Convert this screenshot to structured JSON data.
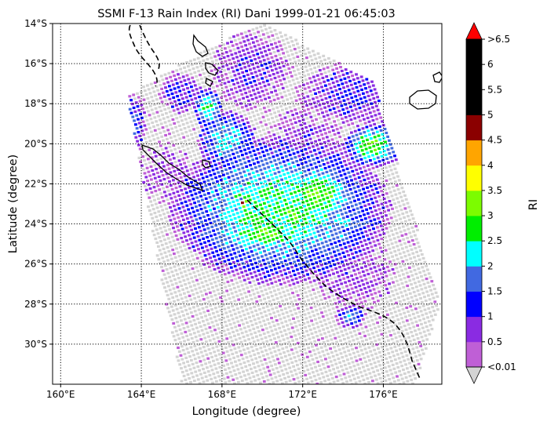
{
  "chart_data": {
    "type": "heatmap",
    "title": "SSMI F-13 Rain Index (RI) Dani 1999-01-21 06:45:03",
    "xlabel": "Longitude (degree)",
    "ylabel": "Latitude (degree)",
    "colorbar_label": "RI",
    "xlim": [
      159.6,
      178.9
    ],
    "ylim": [
      -32.0,
      -14.0
    ],
    "grid": true,
    "grid_style": "dotted",
    "x_ticks": [
      {
        "value": 160,
        "label": "160°E"
      },
      {
        "value": 164,
        "label": "164°E"
      },
      {
        "value": 168,
        "label": "168°E"
      },
      {
        "value": 172,
        "label": "172°E"
      },
      {
        "value": 176,
        "label": "176°E"
      }
    ],
    "y_ticks": [
      {
        "value": -14,
        "label": "14°S"
      },
      {
        "value": -16,
        "label": "16°S"
      },
      {
        "value": -18,
        "label": "18°S"
      },
      {
        "value": -20,
        "label": "20°S"
      },
      {
        "value": -22,
        "label": "22°S"
      },
      {
        "value": -24,
        "label": "24°S"
      },
      {
        "value": -26,
        "label": "26°S"
      },
      {
        "value": -28,
        "label": "28°S"
      },
      {
        "value": -30,
        "label": "30°S"
      }
    ],
    "colorbar": {
      "under_color": "#d3d3d3",
      "over_color": "#ff0000",
      "bins": [
        {
          "color": "#bf5fd6"
        },
        {
          "color": "#8a2be2"
        },
        {
          "color": "#0000ff"
        },
        {
          "color": "#4169e1"
        },
        {
          "color": "#00ffff"
        },
        {
          "color": "#00ee00"
        },
        {
          "color": "#7cfc00"
        },
        {
          "color": "#ffff00"
        },
        {
          "color": "#ffa500"
        },
        {
          "color": "#8b0000"
        },
        {
          "color": "#000000"
        },
        {
          "color": "#000000"
        },
        {
          "color": "#000000"
        }
      ],
      "tick_labels": [
        "<0.01",
        "0.5",
        "1",
        "1.5",
        "2",
        "2.5",
        "3",
        "3.5",
        "4",
        "4.5",
        "5",
        "5.5",
        "6",
        ">6.5"
      ]
    },
    "swath_corners_lonlat": [
      [
        163.3,
        -17.6
      ],
      [
        167.2,
        -15.3
      ],
      [
        170.0,
        -13.9
      ],
      [
        175.5,
        -16.9
      ],
      [
        178.8,
        -28.0
      ],
      [
        177.6,
        -32.0
      ],
      [
        166.0,
        -32.0
      ]
    ],
    "rain_features": [
      {
        "lon": 170.9,
        "lat": -23.3,
        "ri": 2.6,
        "rx": 4.4,
        "ry": 3.0
      },
      {
        "lon": 170.2,
        "lat": -24.5,
        "ri": 3.1,
        "rx": 1.8,
        "ry": 0.65
      },
      {
        "lon": 172.8,
        "lat": -22.5,
        "ri": 3.0,
        "rx": 1.6,
        "ry": 1.2
      },
      {
        "lon": 171.6,
        "lat": -23.5,
        "ri": 3.3,
        "rx": 0.5,
        "ry": 0.5
      },
      {
        "lon": 175.5,
        "lat": -20.1,
        "ri": 2.9,
        "rx": 1.2,
        "ry": 0.9
      },
      {
        "lon": 167.3,
        "lat": -18.2,
        "ri": 2.6,
        "rx": 0.6,
        "ry": 0.8
      },
      {
        "lon": 168.2,
        "lat": -19.8,
        "ri": 2.2,
        "rx": 1.2,
        "ry": 1.2
      },
      {
        "lon": 163.5,
        "lat": -19.0,
        "ri": 1.6,
        "rx": 0.6,
        "ry": 1.3
      },
      {
        "lon": 166.0,
        "lat": -17.5,
        "ri": 1.3,
        "rx": 0.9,
        "ry": 0.8
      },
      {
        "lon": 174.5,
        "lat": -17.5,
        "ri": 1.1,
        "rx": 2.2,
        "ry": 1.3
      },
      {
        "lon": 169.5,
        "lat": -16.3,
        "ri": 0.9,
        "rx": 1.6,
        "ry": 1.6
      },
      {
        "lon": 174.6,
        "lat": -26.5,
        "ri": 0.7,
        "rx": 1.6,
        "ry": 1.5
      },
      {
        "lon": 174.4,
        "lat": -28.6,
        "ri": 1.8,
        "rx": 0.6,
        "ry": 0.5
      },
      {
        "lon": 165.2,
        "lat": -21.5,
        "ri": 0.6,
        "rx": 1.3,
        "ry": 1.2
      },
      {
        "lon": 169.1,
        "lat": -23.0,
        "ri": 5.0,
        "rx": 0.18,
        "ry": 0.18
      },
      {
        "lon": 172.2,
        "lat": -19.6,
        "ri": 0.7,
        "rx": 1.5,
        "ry": 1.2
      }
    ]
  }
}
